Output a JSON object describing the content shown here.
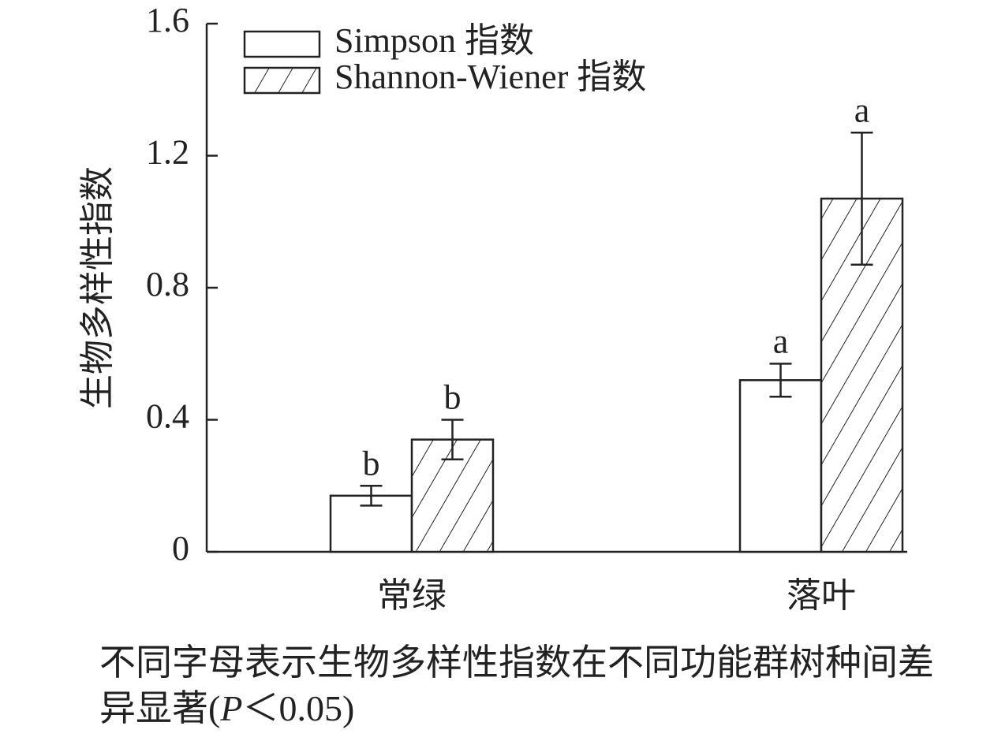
{
  "chart_data": {
    "type": "bar",
    "ylabel": "生物多样性指数",
    "categories": [
      "常绿",
      "落叶"
    ],
    "series": [
      {
        "name": "Simpson 指数",
        "color": "#ffffff",
        "hatch": false,
        "values": [
          0.17,
          0.52
        ],
        "errors": [
          0.03,
          0.05
        ],
        "letters": [
          "b",
          "a"
        ]
      },
      {
        "name": "Shannon-Wiener 指数",
        "color": "#ffffff",
        "hatch": true,
        "values": [
          0.34,
          1.07
        ],
        "errors": [
          0.06,
          0.2
        ],
        "letters": [
          "b",
          "a"
        ]
      }
    ],
    "ylim": [
      0,
      1.6
    ],
    "yticks": [
      0,
      0.4,
      0.8,
      1.2,
      1.6
    ],
    "grid": false,
    "legend": "upper left",
    "note": [
      "不同字母表示生物多样性指数在不同功能群树种间差异显著(",
      "P",
      "＜0.05)"
    ]
  }
}
